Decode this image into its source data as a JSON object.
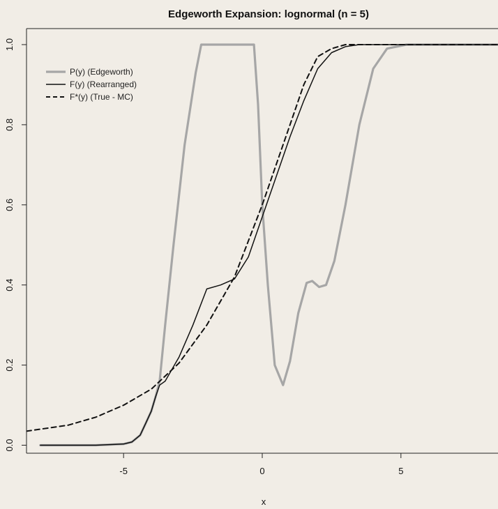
{
  "chart_data": {
    "type": "line",
    "title": "Edgeworth Expansion: lognormal (n = 5)",
    "xlabel": "x",
    "ylabel": "",
    "xlim": [
      -8.5,
      8.5
    ],
    "ylim": [
      -0.02,
      1.04
    ],
    "xticks": [
      -5,
      0,
      5
    ],
    "xtick_labels": [
      "-5",
      "0",
      "5"
    ],
    "yticks": [
      0.0,
      0.2,
      0.4,
      0.6,
      0.8,
      1.0
    ],
    "ytick_labels": [
      "0.0",
      "0.2",
      "0.4",
      "0.6",
      "0.8",
      "1.0"
    ],
    "grid": false,
    "legend_position": "top-left",
    "series": [
      {
        "name": "P(y) (Edgeworth)",
        "color": "#a6a6a6",
        "style": "solid-thick",
        "points": [
          [
            -8,
            0
          ],
          [
            -6,
            0
          ],
          [
            -5,
            0.003
          ],
          [
            -4.7,
            0.008
          ],
          [
            -4.4,
            0.025
          ],
          [
            -4.2,
            0.055
          ],
          [
            -4,
            0.085
          ],
          [
            -3.85,
            0.12
          ],
          [
            -3.7,
            0.16
          ],
          [
            -3.5,
            0.3
          ],
          [
            -3.2,
            0.5
          ],
          [
            -2.8,
            0.75
          ],
          [
            -2.4,
            0.93
          ],
          [
            -2.2,
            1
          ],
          [
            -1.8,
            1
          ],
          [
            -1,
            1
          ],
          [
            -0.3,
            1
          ],
          [
            -0.15,
            0.85
          ],
          [
            0,
            0.6
          ],
          [
            0.2,
            0.4
          ],
          [
            0.45,
            0.2
          ],
          [
            0.75,
            0.15
          ],
          [
            1,
            0.21
          ],
          [
            1.3,
            0.33
          ],
          [
            1.6,
            0.405
          ],
          [
            1.8,
            0.41
          ],
          [
            2.05,
            0.395
          ],
          [
            2.3,
            0.4
          ],
          [
            2.6,
            0.46
          ],
          [
            3,
            0.6
          ],
          [
            3.5,
            0.8
          ],
          [
            4,
            0.94
          ],
          [
            4.5,
            0.99
          ],
          [
            5.2,
            1
          ],
          [
            6,
            1
          ],
          [
            8.5,
            1
          ]
        ]
      },
      {
        "name": "F(y) (Rearranged)",
        "color": "#111111",
        "style": "solid",
        "points": [
          [
            -8,
            0
          ],
          [
            -6,
            0
          ],
          [
            -5,
            0.003
          ],
          [
            -4.7,
            0.008
          ],
          [
            -4.4,
            0.025
          ],
          [
            -4.2,
            0.055
          ],
          [
            -4,
            0.085
          ],
          [
            -3.85,
            0.12
          ],
          [
            -3.7,
            0.15
          ],
          [
            -3.5,
            0.16
          ],
          [
            -3,
            0.22
          ],
          [
            -2.5,
            0.3
          ],
          [
            -2,
            0.39
          ],
          [
            -1.5,
            0.4
          ],
          [
            -1,
            0.415
          ],
          [
            -0.5,
            0.47
          ],
          [
            0,
            0.57
          ],
          [
            0.5,
            0.67
          ],
          [
            1,
            0.77
          ],
          [
            1.5,
            0.86
          ],
          [
            2,
            0.94
          ],
          [
            2.5,
            0.98
          ],
          [
            3,
            0.995
          ],
          [
            3.5,
            1
          ],
          [
            8.5,
            1
          ]
        ]
      },
      {
        "name": "F*(y) (True - MC)",
        "color": "#111111",
        "style": "dashed",
        "points": [
          [
            -8.5,
            0.035
          ],
          [
            -8,
            0.04
          ],
          [
            -7,
            0.05
          ],
          [
            -6,
            0.07
          ],
          [
            -5,
            0.1
          ],
          [
            -4,
            0.14
          ],
          [
            -3,
            0.205
          ],
          [
            -2,
            0.3
          ],
          [
            -1,
            0.42
          ],
          [
            0,
            0.6
          ],
          [
            0.5,
            0.7
          ],
          [
            1,
            0.8
          ],
          [
            1.5,
            0.9
          ],
          [
            2,
            0.97
          ],
          [
            2.5,
            0.99
          ],
          [
            3,
            1
          ],
          [
            8.5,
            1
          ]
        ]
      }
    ]
  }
}
